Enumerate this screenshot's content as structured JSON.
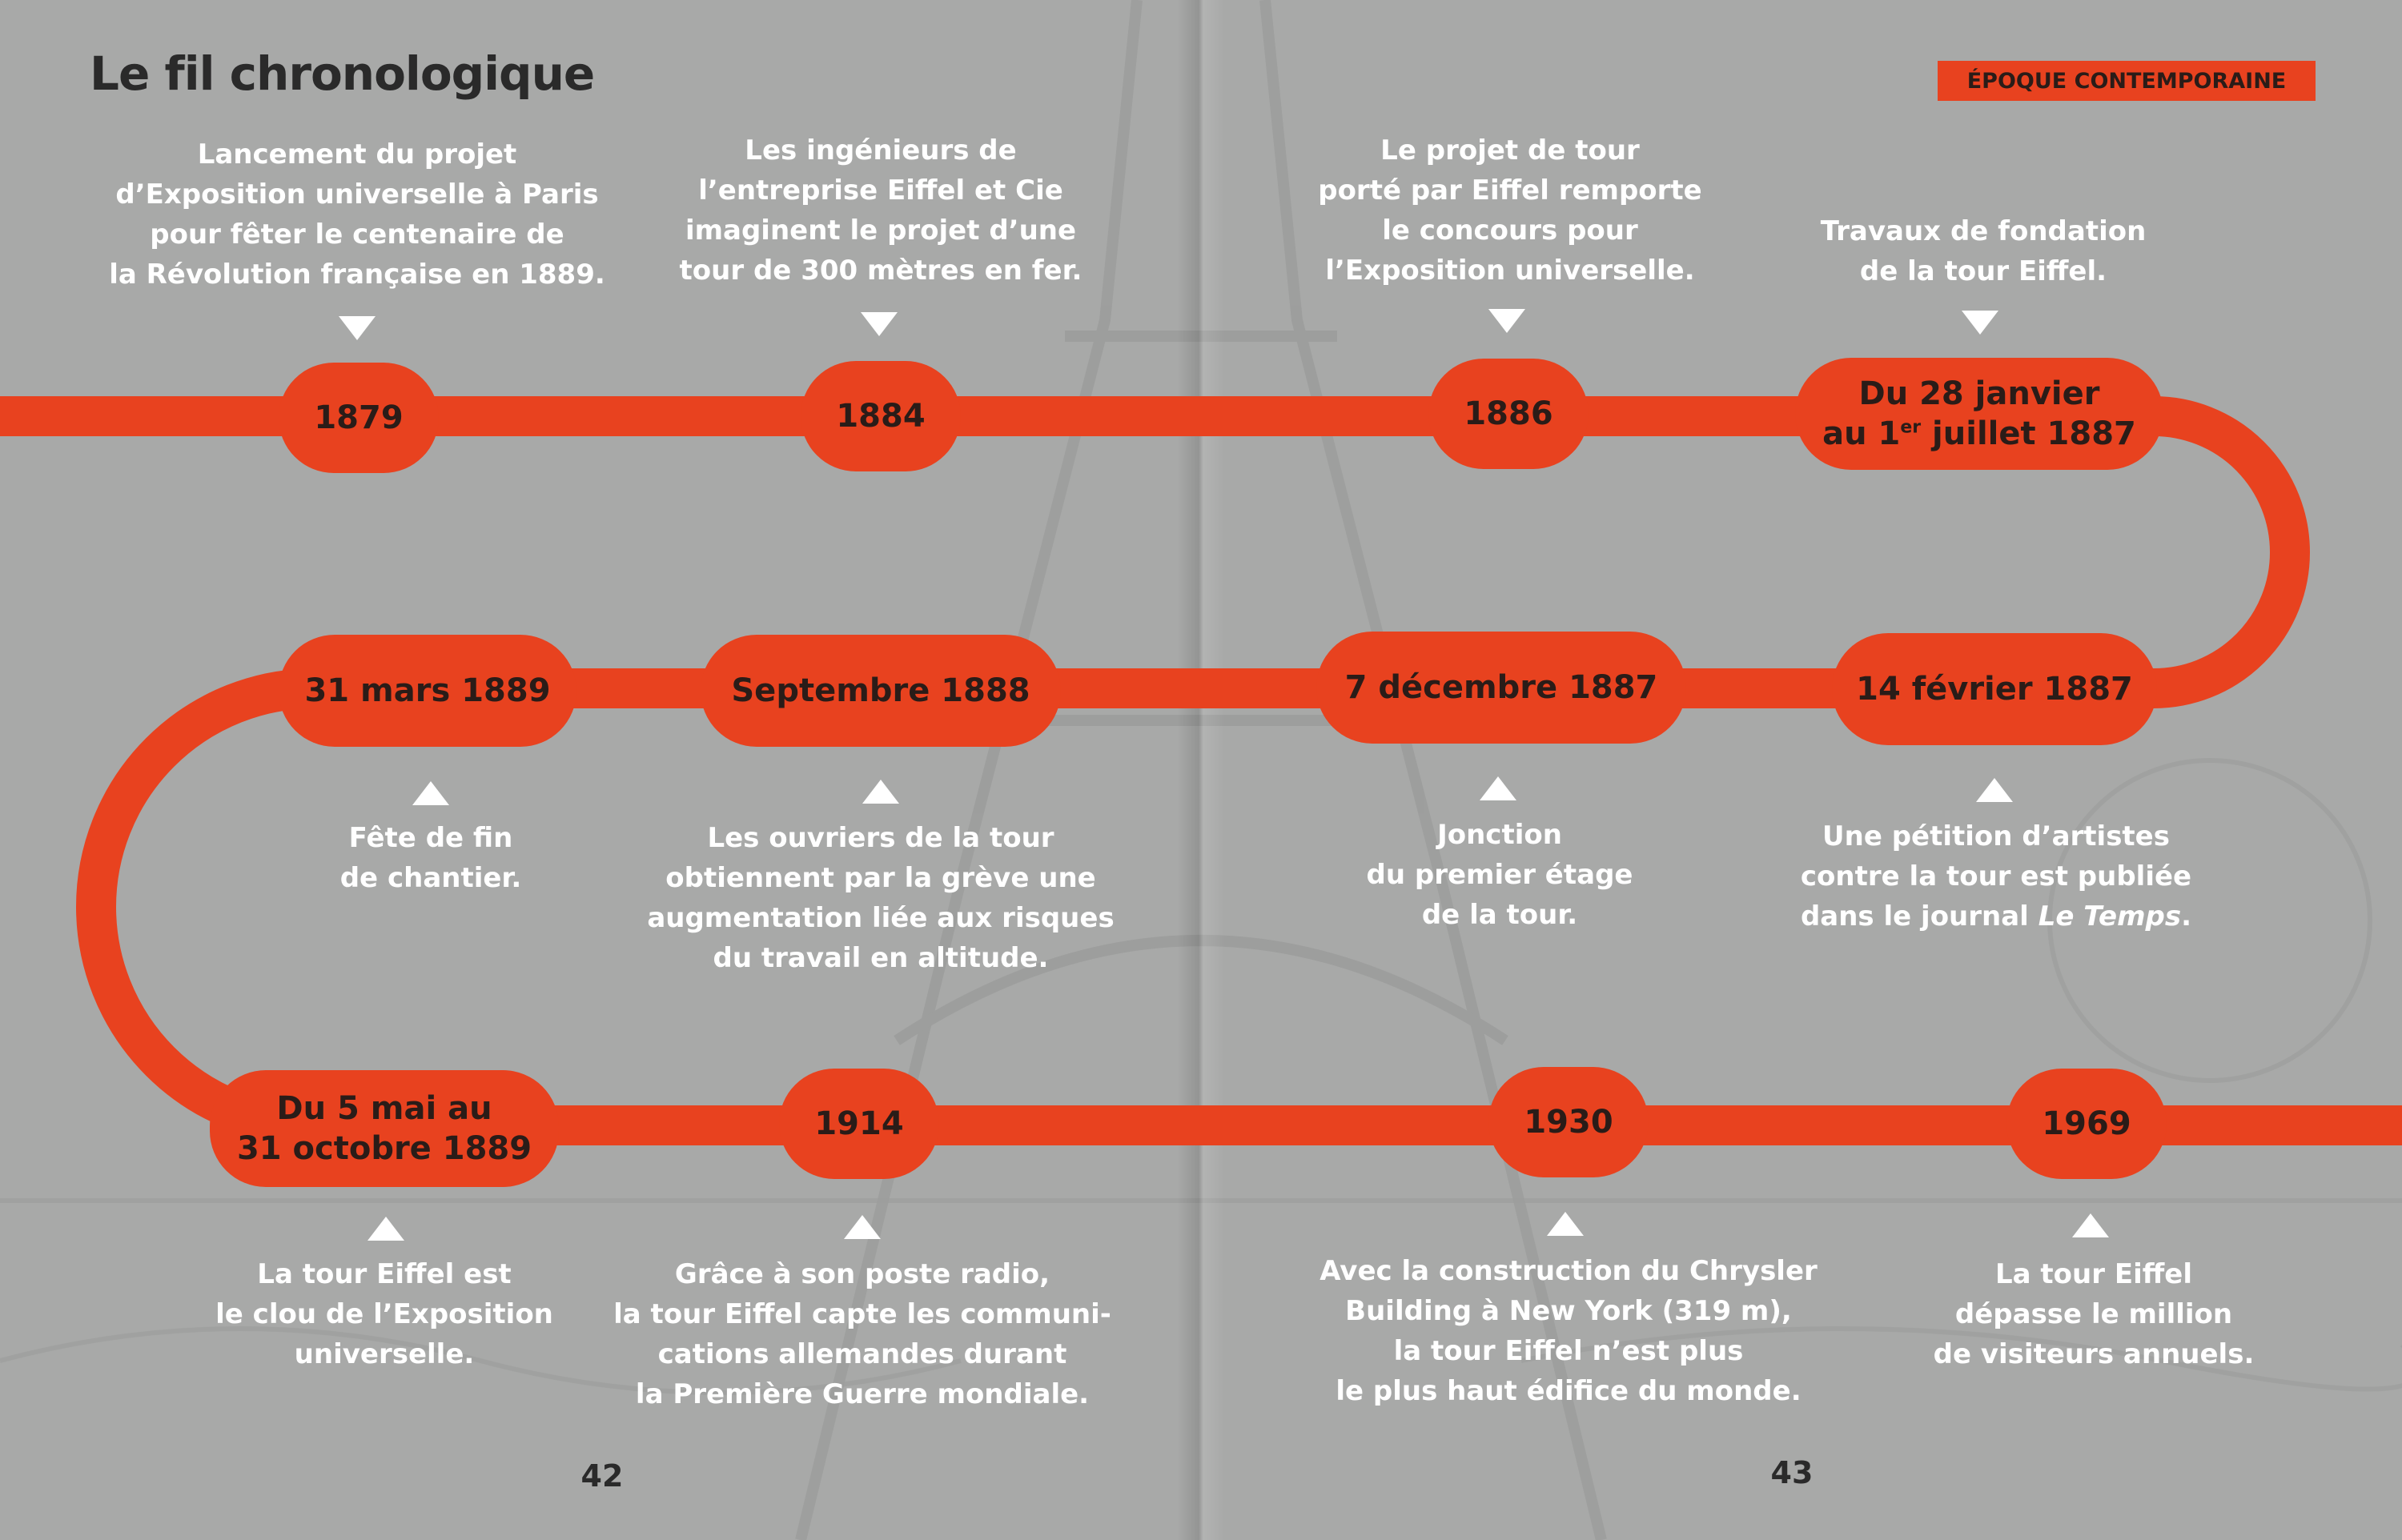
{
  "header": {
    "title": "Le fil chronologique",
    "badge": "ÉPOQUE CONTEMPORAINE"
  },
  "colors": {
    "accent": "#e8421f",
    "background": "#a8a9a8",
    "text_light": "#ffffff",
    "text_dark": "#2a1c18"
  },
  "events": [
    {
      "date": "1879",
      "description": "Lancement du projet\nd’Exposition universelle à Paris\npour fêter le centenaire de\nla Révolution française en 1889."
    },
    {
      "date": "1884",
      "description": "Les ingénieurs de\nl’entreprise Eiffel et Cie\nimaginent le projet d’une\ntour de 300 mètres en fer."
    },
    {
      "date": "1886",
      "description": "Le projet de tour\nporté par Eiffel remporte\nle concours pour\nl’Exposition universelle."
    },
    {
      "date_line1": "Du 28 janvier",
      "date_line2_prefix": "au 1",
      "date_line2_sup": "er",
      "date_line2_suffix": " juillet 1887",
      "description": "Travaux de fondation\nde la tour Eiffel."
    },
    {
      "date": "14 février 1887",
      "description_prefix": "Une pétition d’artistes\ncontre la tour est publiée\ndans le journal ",
      "description_italic": "Le Temps",
      "description_suffix": "."
    },
    {
      "date": "7 décembre 1887",
      "description": "Jonction\ndu premier étage\nde la tour."
    },
    {
      "date": "Septembre 1888",
      "description": "Les ouvriers de la tour\nobtiennent par la grève une\naugmentation liée aux risques\ndu travail en altitude."
    },
    {
      "date": "31 mars 1889",
      "description": "Fête de fin\nde chantier."
    },
    {
      "date": "Du 5 mai au\n31 octobre 1889",
      "description": "La tour Eiffel est\nle clou de l’Exposition\nuniverselle."
    },
    {
      "date": "1914",
      "description": "Grâce à son poste radio,\nla tour Eiffel capte les communi-\ncations allemandes durant\nla Première Guerre mondiale."
    },
    {
      "date": "1930",
      "description": "Avec la construction du Chrysler\nBuilding à New York (319 m),\nla tour Eiffel n’est plus\nle plus haut édifice du monde."
    },
    {
      "date": "1969",
      "description": "La tour Eiffel\ndépasse le million\nde visiteurs annuels."
    }
  ],
  "page_numbers": {
    "left": "42",
    "right": "43"
  }
}
